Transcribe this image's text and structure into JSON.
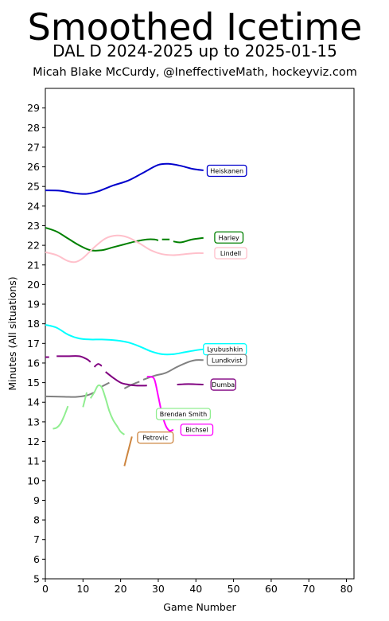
{
  "header": {
    "title": "Smoothed Icetime",
    "subtitle": "DAL D 2024-2025 up to 2025-01-15",
    "credit": "Micah Blake McCurdy, @IneffectiveMath, hockeyviz.com"
  },
  "chart_data": {
    "type": "line",
    "title": "Smoothed Icetime",
    "subtitle": "DAL D 2024-2025 up to 2025-01-15",
    "xlabel": "Game Number",
    "ylabel": "Minutes (All situations)",
    "xlim": [
      0,
      82
    ],
    "ylim": [
      5,
      30
    ],
    "xticks": [
      0,
      10,
      20,
      30,
      40,
      50,
      60,
      70,
      80
    ],
    "yticks": [
      5,
      6,
      7,
      8,
      9,
      10,
      11,
      12,
      13,
      14,
      15,
      16,
      17,
      18,
      19,
      20,
      21,
      22,
      23,
      24,
      25,
      26,
      27,
      28,
      29
    ],
    "grid": false,
    "series": [
      {
        "name": "Heiskanen",
        "color": "#0000cc",
        "label_at": [
          43,
          25.8
        ],
        "segments": [
          [
            [
              0,
              24.8
            ],
            [
              4,
              24.78
            ],
            [
              8,
              24.65
            ],
            [
              11,
              24.62
            ],
            [
              14,
              24.75
            ],
            [
              18,
              25.05
            ],
            [
              22,
              25.3
            ],
            [
              26,
              25.7
            ],
            [
              30,
              26.1
            ],
            [
              33,
              26.15
            ],
            [
              36,
              26.05
            ],
            [
              39,
              25.9
            ],
            [
              42,
              25.82
            ]
          ]
        ]
      },
      {
        "name": "Harley",
        "color": "#008000",
        "label_at": [
          45,
          22.4
        ],
        "segments": [
          [
            [
              0,
              22.9
            ],
            [
              3,
              22.7
            ],
            [
              6,
              22.35
            ],
            [
              9,
              22.0
            ],
            [
              12,
              21.75
            ],
            [
              15,
              21.75
            ],
            [
              18,
              21.9
            ],
            [
              21,
              22.05
            ],
            [
              24,
              22.2
            ],
            [
              27,
              22.3
            ],
            [
              29,
              22.3
            ],
            [
              30,
              22.25
            ]
          ],
          [
            [
              31,
              22.3
            ],
            [
              33,
              22.3
            ]
          ],
          [
            [
              34,
              22.2
            ],
            [
              36,
              22.15
            ],
            [
              39,
              22.3
            ],
            [
              42,
              22.38
            ]
          ]
        ]
      },
      {
        "name": "Lindell",
        "color": "#ffc0cb",
        "label_at": [
          45,
          21.6
        ],
        "segments": [
          [
            [
              0,
              21.65
            ],
            [
              3,
              21.5
            ],
            [
              6,
              21.2
            ],
            [
              8,
              21.15
            ],
            [
              10,
              21.35
            ],
            [
              13,
              21.9
            ],
            [
              16,
              22.35
            ],
            [
              19,
              22.5
            ],
            [
              22,
              22.4
            ],
            [
              25,
              22.1
            ],
            [
              28,
              21.75
            ],
            [
              31,
              21.55
            ],
            [
              34,
              21.5
            ],
            [
              37,
              21.55
            ],
            [
              40,
              21.6
            ],
            [
              42,
              21.6
            ]
          ]
        ]
      },
      {
        "name": "Lyubushkin",
        "color": "#00ffff",
        "label_at": [
          42,
          16.7
        ],
        "segments": [
          [
            [
              0,
              17.95
            ],
            [
              3,
              17.8
            ],
            [
              6,
              17.45
            ],
            [
              9,
              17.25
            ],
            [
              12,
              17.2
            ],
            [
              15,
              17.2
            ],
            [
              19,
              17.15
            ],
            [
              22,
              17.05
            ],
            [
              25,
              16.85
            ],
            [
              28,
              16.6
            ],
            [
              31,
              16.45
            ],
            [
              34,
              16.45
            ],
            [
              37,
              16.55
            ],
            [
              40,
              16.65
            ],
            [
              42,
              16.7
            ]
          ]
        ]
      },
      {
        "name": "Lundkvist",
        "color": "#808080",
        "label_at": [
          43,
          16.15
        ],
        "segments": [
          [
            [
              0,
              14.3
            ],
            [
              5,
              14.28
            ],
            [
              8,
              14.27
            ],
            [
              11,
              14.35
            ],
            [
              13,
              14.5
            ]
          ],
          [
            [
              15,
              14.8
            ],
            [
              17,
              15.0
            ]
          ],
          [
            [
              21,
              14.7
            ],
            [
              23,
              14.9
            ],
            [
              25,
              15.05
            ]
          ],
          [
            [
              26,
              15.15
            ],
            [
              29,
              15.35
            ],
            [
              32,
              15.5
            ],
            [
              35,
              15.8
            ],
            [
              38,
              16.05
            ],
            [
              40,
              16.15
            ],
            [
              42,
              16.15
            ]
          ]
        ]
      },
      {
        "name": "Dumba",
        "color": "#800080",
        "label_at": [
          44,
          14.9
        ],
        "segments": [
          [
            [
              0,
              16.3
            ],
            [
              1,
              16.3
            ]
          ],
          [
            [
              3,
              16.35
            ],
            [
              6,
              16.35
            ],
            [
              9,
              16.35
            ],
            [
              11,
              16.2
            ],
            [
              12,
              16.05
            ]
          ],
          [
            [
              13,
              15.8
            ],
            [
              14,
              15.95
            ],
            [
              15,
              15.85
            ]
          ],
          [
            [
              16,
              15.55
            ],
            [
              18,
              15.25
            ],
            [
              20,
              15.0
            ],
            [
              22,
              14.9
            ],
            [
              24,
              14.85
            ],
            [
              27,
              14.85
            ]
          ],
          [
            [
              35,
              14.9
            ],
            [
              38,
              14.93
            ],
            [
              42,
              14.9
            ]
          ]
        ]
      },
      {
        "name": "Bichsel",
        "color": "#ff00ff",
        "label_at": [
          36,
          12.6
        ],
        "segments": [
          [
            [
              27,
              15.3
            ],
            [
              28,
              15.3
            ],
            [
              29,
              15.15
            ],
            [
              30,
              14.3
            ],
            [
              31,
              13.4
            ],
            [
              32,
              12.8
            ],
            [
              33,
              12.55
            ],
            [
              34,
              12.6
            ]
          ]
        ]
      },
      {
        "name": "Brendan Smith",
        "color": "#90ee90",
        "label_at": [
          29.5,
          13.4
        ],
        "segments": [
          [
            [
              2,
              12.65
            ],
            [
              3,
              12.7
            ],
            [
              4,
              12.9
            ],
            [
              5,
              13.3
            ],
            [
              6,
              13.8
            ]
          ],
          [
            [
              10,
              13.75
            ],
            [
              11,
              14.5
            ]
          ],
          [
            [
              12,
              14.2
            ],
            [
              13,
              14.5
            ],
            [
              14,
              14.85
            ],
            [
              15,
              14.75
            ],
            [
              16,
              14.2
            ],
            [
              17,
              13.55
            ],
            [
              18,
              13.1
            ],
            [
              19,
              12.8
            ],
            [
              20,
              12.5
            ],
            [
              21,
              12.35
            ]
          ]
        ]
      },
      {
        "name": "Petrovic",
        "color": "#cd853f",
        "label_at": [
          24.5,
          12.2
        ],
        "segments": [
          [
            [
              21,
              10.75
            ],
            [
              22,
              11.5
            ],
            [
              23,
              12.25
            ]
          ]
        ]
      }
    ]
  }
}
